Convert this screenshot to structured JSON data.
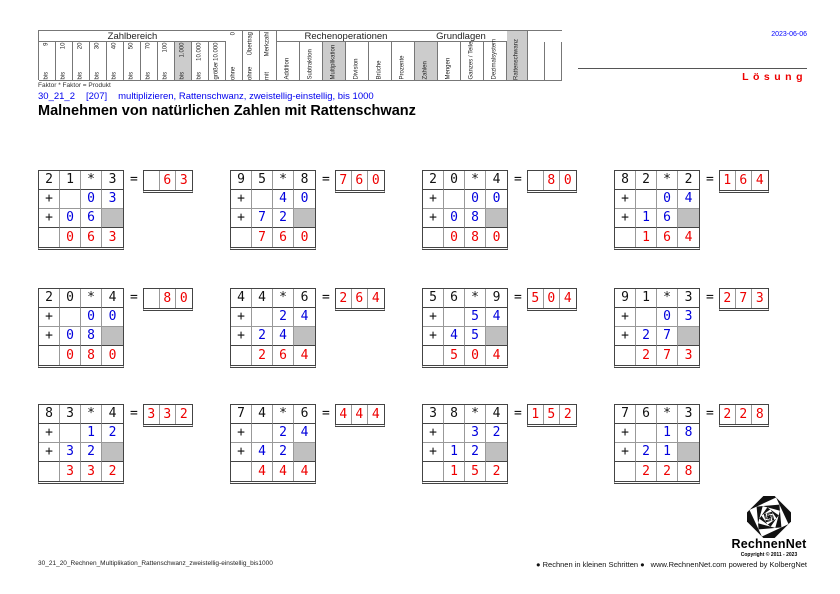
{
  "meta": {
    "date": "2023-06-06",
    "solution_label": "Lösung",
    "formula": "Faktor * Faktor = Produkt"
  },
  "subtitle": {
    "code": "30_21_2",
    "ref": "[207]",
    "desc": "multiplizieren, Rattenschwanz, zweistellig-einstellig, bis 1000"
  },
  "title": "Malnehmen von natürlichen Zahlen mit Rattenschwanz",
  "symbols": {
    "times": "*",
    "plus": "+",
    "equals": "="
  },
  "colors": {
    "accent_blue": "#0000dd",
    "accent_red": "#ee0000",
    "highlight_gray": "#cccccc",
    "placeholder_gray": "#c0c0c0"
  },
  "header": {
    "groups": [
      {
        "label": "Zahlbereich",
        "cols": [
          {
            "parts": [
              "bis",
              "9"
            ]
          },
          {
            "parts": [
              "bis",
              "10"
            ]
          },
          {
            "parts": [
              "bis",
              "20"
            ]
          },
          {
            "parts": [
              "bis",
              "30"
            ]
          },
          {
            "parts": [
              "bis",
              "40"
            ]
          },
          {
            "parts": [
              "bis",
              "50"
            ]
          },
          {
            "parts": [
              "bis",
              "70"
            ]
          },
          {
            "parts": [
              "bis",
              "100"
            ]
          },
          {
            "parts": [
              "bis",
              "1.000"
            ],
            "hl": true
          },
          {
            "parts": [
              "bis",
              "10.000"
            ]
          },
          {
            "parts": [
              "größer",
              "10.000"
            ]
          }
        ]
      },
      {
        "label": "",
        "full": true,
        "cols": [
          {
            "parts": [
              "ohne",
              "0"
            ],
            "full": true
          },
          {
            "parts": [
              "ohne",
              "Übertrag"
            ],
            "full": true
          },
          {
            "parts": [
              "mit",
              "Merkzahl"
            ],
            "full": true
          }
        ]
      },
      {
        "label": "Rechenoperationen",
        "cols": [
          {
            "parts": [
              "Addition"
            ]
          },
          {
            "parts": [
              "Subtraktion"
            ]
          },
          {
            "parts": [
              "Multiplikation"
            ],
            "hl": true
          },
          {
            "parts": [
              "Division"
            ]
          },
          {
            "parts": [
              "Brüche"
            ]
          },
          {
            "parts": [
              "Prozente"
            ]
          }
        ]
      },
      {
        "label": "Grundlagen",
        "cols": [
          {
            "parts": [
              "Zahlen"
            ],
            "hl": true
          },
          {
            "parts": [
              "Mengen"
            ]
          },
          {
            "parts": [
              "Ganzes / Teile"
            ]
          },
          {
            "parts": [
              "Dezimalsystem"
            ]
          }
        ]
      },
      {
        "label": "",
        "full": true,
        "cols": [
          {
            "parts": [
              "Rattenschwanz"
            ],
            "hl": true,
            "full": true
          },
          {
            "parts": [],
            "empty": true
          },
          {
            "parts": [],
            "empty": true
          }
        ]
      }
    ]
  },
  "problems": [
    {
      "factors": [
        "2",
        "1",
        "3"
      ],
      "partial1": [
        "",
        "0",
        "3"
      ],
      "partial2": [
        "0",
        "6"
      ],
      "sum": [
        "",
        "0",
        "6",
        "3"
      ],
      "result": [
        "",
        "6",
        "3"
      ]
    },
    {
      "factors": [
        "9",
        "5",
        "8"
      ],
      "partial1": [
        "",
        "4",
        "0"
      ],
      "partial2": [
        "7",
        "2"
      ],
      "sum": [
        "",
        "7",
        "6",
        "0"
      ],
      "result": [
        "7",
        "6",
        "0"
      ]
    },
    {
      "factors": [
        "2",
        "0",
        "4"
      ],
      "partial1": [
        "",
        "0",
        "0"
      ],
      "partial2": [
        "0",
        "8"
      ],
      "sum": [
        "",
        "0",
        "8",
        "0"
      ],
      "result": [
        "",
        "8",
        "0"
      ]
    },
    {
      "factors": [
        "8",
        "2",
        "2"
      ],
      "partial1": [
        "",
        "0",
        "4"
      ],
      "partial2": [
        "1",
        "6"
      ],
      "sum": [
        "",
        "1",
        "6",
        "4"
      ],
      "result": [
        "1",
        "6",
        "4"
      ]
    },
    {
      "factors": [
        "2",
        "0",
        "4"
      ],
      "partial1": [
        "",
        "0",
        "0"
      ],
      "partial2": [
        "0",
        "8"
      ],
      "sum": [
        "",
        "0",
        "8",
        "0"
      ],
      "result": [
        "",
        "8",
        "0"
      ]
    },
    {
      "factors": [
        "4",
        "4",
        "6"
      ],
      "partial1": [
        "",
        "2",
        "4"
      ],
      "partial2": [
        "2",
        "4"
      ],
      "sum": [
        "",
        "2",
        "6",
        "4"
      ],
      "result": [
        "2",
        "6",
        "4"
      ]
    },
    {
      "factors": [
        "5",
        "6",
        "9"
      ],
      "partial1": [
        "",
        "5",
        "4"
      ],
      "partial2": [
        "4",
        "5"
      ],
      "sum": [
        "",
        "5",
        "0",
        "4"
      ],
      "result": [
        "5",
        "0",
        "4"
      ]
    },
    {
      "factors": [
        "9",
        "1",
        "3"
      ],
      "partial1": [
        "",
        "0",
        "3"
      ],
      "partial2": [
        "2",
        "7"
      ],
      "sum": [
        "",
        "2",
        "7",
        "3"
      ],
      "result": [
        "2",
        "7",
        "3"
      ]
    },
    {
      "factors": [
        "8",
        "3",
        "4"
      ],
      "partial1": [
        "",
        "1",
        "2"
      ],
      "partial2": [
        "3",
        "2"
      ],
      "sum": [
        "",
        "3",
        "3",
        "2"
      ],
      "result": [
        "3",
        "3",
        "2"
      ]
    },
    {
      "factors": [
        "7",
        "4",
        "6"
      ],
      "partial1": [
        "",
        "2",
        "4"
      ],
      "partial2": [
        "4",
        "2"
      ],
      "sum": [
        "",
        "4",
        "4",
        "4"
      ],
      "result": [
        "4",
        "4",
        "4"
      ]
    },
    {
      "factors": [
        "3",
        "8",
        "4"
      ],
      "partial1": [
        "",
        "3",
        "2"
      ],
      "partial2": [
        "1",
        "2"
      ],
      "sum": [
        "",
        "1",
        "5",
        "2"
      ],
      "result": [
        "1",
        "5",
        "2"
      ]
    },
    {
      "factors": [
        "7",
        "6",
        "3"
      ],
      "partial1": [
        "",
        "1",
        "8"
      ],
      "partial2": [
        "2",
        "1"
      ],
      "sum": [
        "",
        "2",
        "2",
        "8"
      ],
      "result": [
        "2",
        "2",
        "8"
      ]
    }
  ],
  "footer": {
    "filename": "30_21_20_Rechnen_Multiplikation_Rattenschwanz_zweistellig-einstellig_bis1000",
    "slogan": "● Rechnen in kleinen Schritten ●",
    "credit": "www.RechnenNet.com powered by KolbergNet",
    "logo_text": "RechnenNet",
    "copyright": "Copyright © 2011 - 2023"
  }
}
